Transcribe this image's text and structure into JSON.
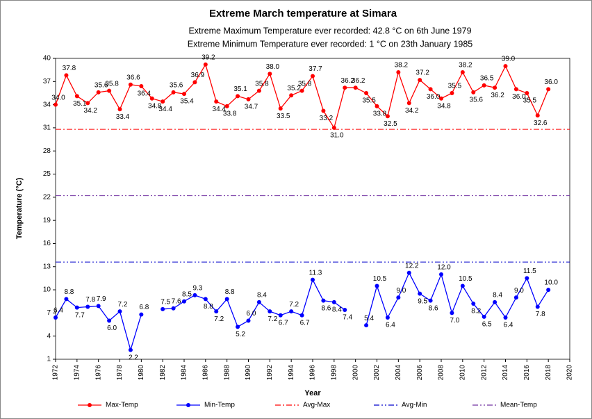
{
  "chart_data": {
    "type": "line",
    "title": "Extreme March temperature at Simara",
    "subtitles": [
      "Extreme Maximum Temperature ever recorded: 42.8 °C on 6th June 1979",
      "Extreme Minimum Temperature ever recorded: 1 °C on 23th January 1985"
    ],
    "xlabel": "Year",
    "ylabel": "Temperature (°C)",
    "x": [
      1972,
      1973,
      1974,
      1975,
      1976,
      1977,
      1978,
      1979,
      1980,
      1981,
      1982,
      1983,
      1984,
      1985,
      1986,
      1987,
      1988,
      1989,
      1990,
      1991,
      1992,
      1993,
      1994,
      1995,
      1996,
      1997,
      1998,
      1999,
      2000,
      2001,
      2002,
      2003,
      2004,
      2005,
      2006,
      2007,
      2008,
      2009,
      2010,
      2011,
      2012,
      2013,
      2014,
      2015,
      2016,
      2017,
      2018
    ],
    "xlim": [
      1972,
      2020
    ],
    "xticks": [
      1972,
      1974,
      1976,
      1978,
      1980,
      1982,
      1984,
      1986,
      1988,
      1990,
      1992,
      1994,
      1996,
      1998,
      2000,
      2002,
      2004,
      2006,
      2008,
      2010,
      2012,
      2014,
      2016,
      2018,
      2020
    ],
    "ylim": [
      1,
      40
    ],
    "yticks": [
      1,
      4,
      7,
      10,
      13,
      16,
      19,
      22,
      25,
      28,
      31,
      34,
      37,
      40
    ],
    "series": [
      {
        "name": "Max-Temp",
        "color": "#ff0000",
        "values": [
          34.0,
          37.8,
          35.1,
          34.2,
          35.6,
          35.8,
          33.4,
          36.6,
          36.4,
          34.8,
          34.4,
          35.6,
          35.4,
          36.9,
          39.2,
          34.4,
          33.8,
          35.1,
          34.7,
          35.8,
          38.0,
          33.5,
          35.2,
          35.8,
          37.7,
          33.2,
          31.0,
          36.2,
          36.2,
          35.5,
          33.8,
          32.5,
          38.2,
          34.2,
          37.2,
          36.0,
          34.8,
          35.5,
          38.2,
          35.6,
          36.5,
          36.2,
          39.0,
          36.0,
          35.5,
          32.6,
          36.0
        ],
        "value_labels": [
          "34.0",
          "37.8",
          "35.1",
          "34.2",
          "35.6",
          "35.8",
          "33.4",
          "36.6",
          "36.4",
          "34.8",
          "34.4",
          "35.6",
          "35.4",
          "36.9",
          "39.2",
          "34.4",
          "33.8",
          "35.1",
          "34.7",
          "35.8",
          "38.0",
          "33.5",
          "35.2",
          "35.8",
          "37.7",
          "33.2",
          "31.0",
          "36.2",
          "36.2",
          "35.5",
          "33.8",
          "32.5",
          "38.2",
          "34.2",
          "37.2",
          "36.0",
          "34.8",
          "35.5",
          "38.2",
          "35.6",
          "36.5",
          "36.2",
          "39.0",
          "36.0",
          "35.5",
          "32.6",
          "36.0"
        ]
      },
      {
        "name": "Min-Temp",
        "color": "#0000ff",
        "values": [
          6.4,
          8.8,
          7.7,
          7.8,
          7.9,
          6.0,
          7.2,
          2.2,
          6.8,
          null,
          7.5,
          7.6,
          8.5,
          9.3,
          8.8,
          7.2,
          8.8,
          5.2,
          6.0,
          8.4,
          7.2,
          6.7,
          7.2,
          6.7,
          11.3,
          8.6,
          8.4,
          7.4,
          null,
          5.4,
          10.5,
          6.4,
          9.0,
          12.2,
          9.5,
          8.6,
          12.0,
          7.0,
          10.5,
          8.2,
          6.5,
          8.4,
          6.4,
          9.0,
          11.5,
          7.8,
          10.0
        ],
        "value_labels": [
          "6.4",
          "8.8",
          "7.7",
          "7.8",
          "7.9",
          "6.0",
          "7.2",
          "2.2",
          "6.8",
          null,
          "7.5",
          "7.6",
          "8.5",
          "9.3",
          "8.8",
          "7.2",
          "8.8",
          "5.2",
          "6.0",
          "8.4",
          "7.2",
          "6.7",
          "7.2",
          "6.7",
          "11.3",
          "8.6",
          "8.4",
          "7.4",
          null,
          "5.4",
          "10.5",
          "6.4",
          "9.0",
          "12.2",
          "9.5",
          "8.6",
          "12.0",
          "7.0",
          "10.5",
          "8.2",
          "6.5",
          "8.4",
          "6.4",
          "9.0",
          "11.5",
          "7.8",
          "10.0"
        ]
      }
    ],
    "reference_lines": [
      {
        "name": "Avg-Max",
        "color": "#ff0000",
        "value": 30.8
      },
      {
        "name": "Avg-Min",
        "color": "#0000cc",
        "value": 13.6
      },
      {
        "name": "Mean-Temp",
        "color": "#7030a0",
        "value": 22.2
      }
    ]
  }
}
